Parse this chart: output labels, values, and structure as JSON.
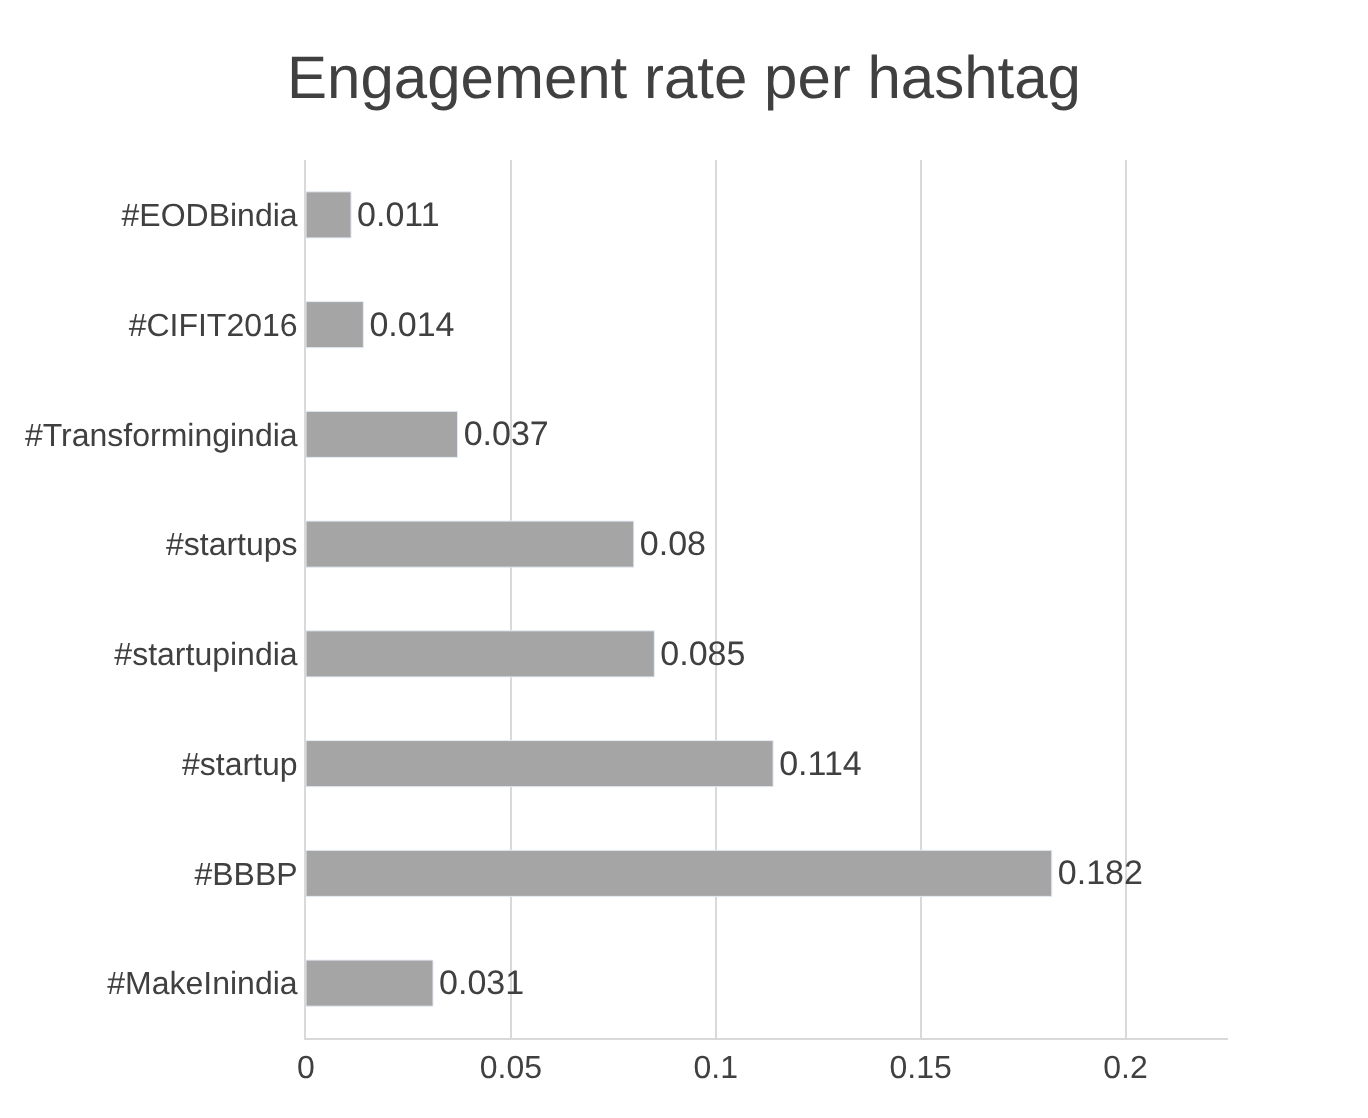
{
  "chart_data": {
    "type": "bar",
    "orientation": "horizontal",
    "title": "Engagement rate per hashtag",
    "categories": [
      "#EODBindia",
      "#CIFIT2016",
      "#Transformingindia",
      "#startups",
      "#startupindia",
      "#startup",
      "#BBBP",
      "#MakeInindia"
    ],
    "values": [
      0.011,
      0.014,
      0.037,
      0.08,
      0.085,
      0.114,
      0.182,
      0.031
    ],
    "color": "#a5a5a5",
    "xlim": [
      0,
      0.225
    ],
    "xticks": [
      0,
      0.05,
      0.1,
      0.15,
      0.2
    ],
    "grid": "x",
    "data_labels": true
  }
}
